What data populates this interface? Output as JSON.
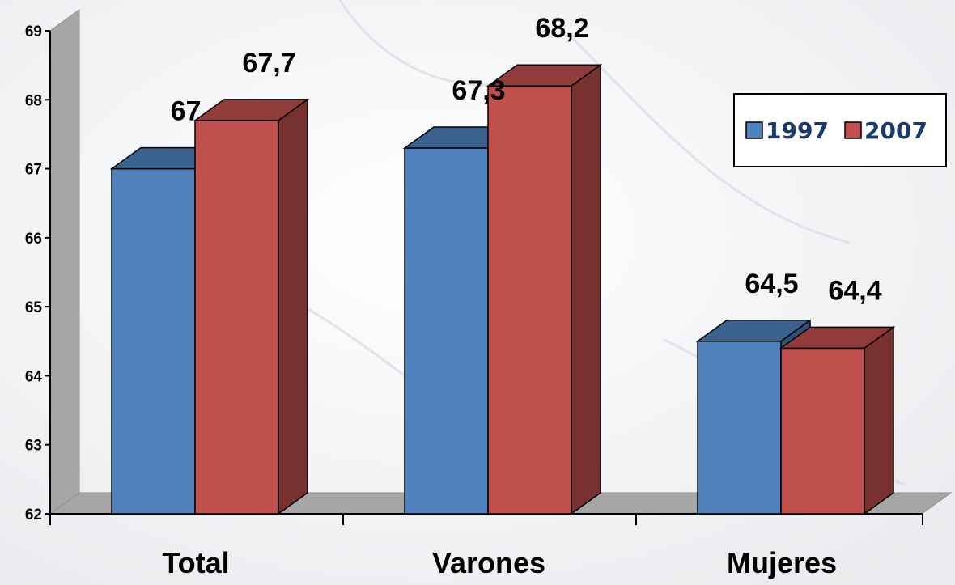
{
  "chart_data": {
    "type": "bar",
    "categories": [
      "Total",
      "Varones",
      "Mujeres"
    ],
    "series": [
      {
        "name": "1997",
        "values": [
          67,
          67.3,
          64.5
        ],
        "labels": [
          "67",
          "67,3",
          "64,5"
        ],
        "color": "#4f81bd"
      },
      {
        "name": "2007",
        "values": [
          67.7,
          68.2,
          64.4
        ],
        "labels": [
          "67,7",
          "68,2",
          "64,4"
        ],
        "color": "#c0504d"
      }
    ],
    "ylim": [
      62,
      69
    ],
    "yticks": [
      "62",
      "63",
      "64",
      "65",
      "66",
      "67",
      "68",
      "69"
    ],
    "legend_position": "top-right",
    "grid": false,
    "three_d": true
  }
}
